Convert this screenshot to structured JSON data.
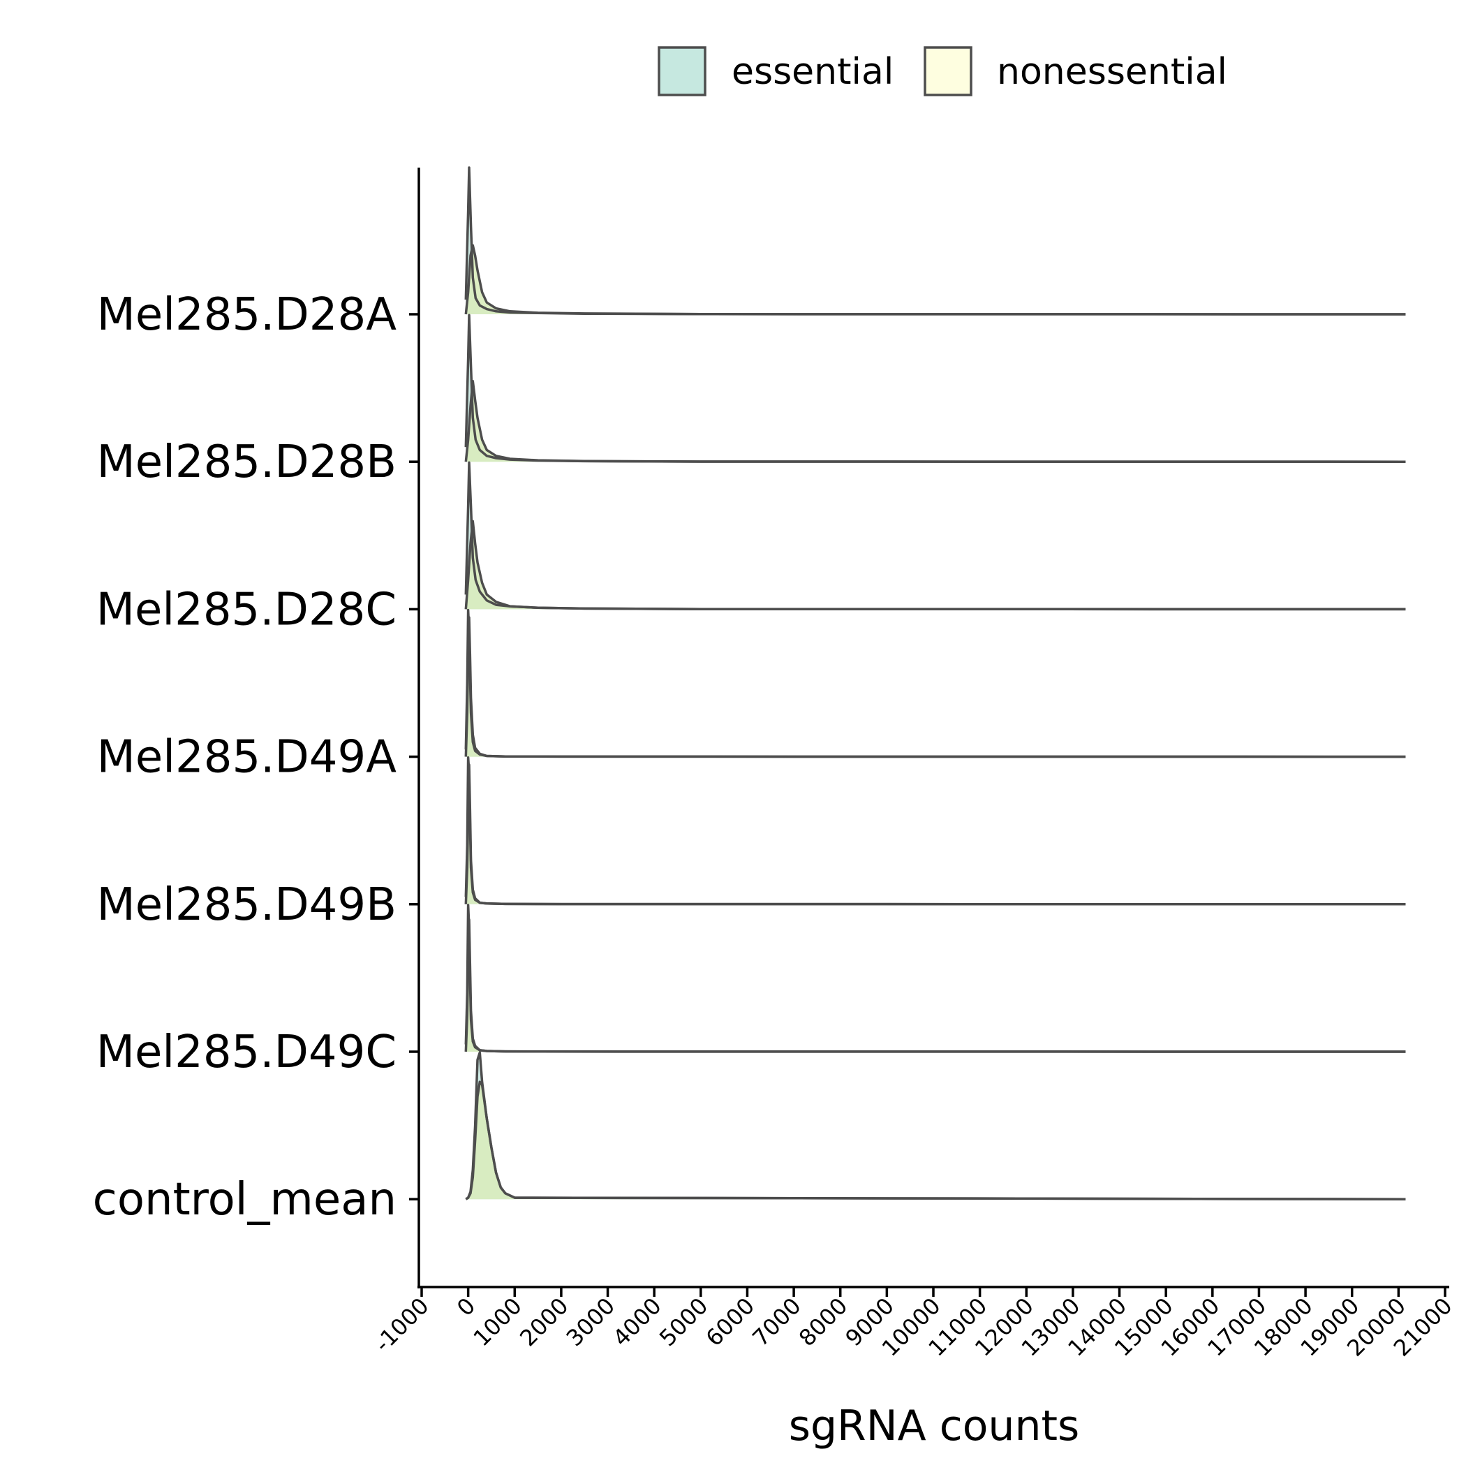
{
  "chart_data": {
    "type": "area",
    "subtype": "ridgeline-density",
    "xlabel": "sgRNA counts",
    "ylabel": "",
    "xlim": [
      -1000,
      21000
    ],
    "x_ticks": [
      -1000,
      0,
      1000,
      2000,
      3000,
      4000,
      5000,
      6000,
      7000,
      8000,
      9000,
      10000,
      11000,
      12000,
      13000,
      14000,
      15000,
      16000,
      17000,
      18000,
      19000,
      20000,
      21000
    ],
    "x_tick_labels": [
      "-1000",
      "0",
      "1000",
      "2000",
      "3000",
      "4000",
      "5000",
      "6000",
      "7000",
      "8000",
      "9000",
      "10000",
      "11000",
      "12000",
      "13000",
      "14000",
      "15000",
      "16000",
      "17000",
      "18000",
      "19000",
      "20000",
      "21000"
    ],
    "categories": [
      "Mel285.D28A",
      "Mel285.D28B",
      "Mel285.D28C",
      "Mel285.D49A",
      "Mel285.D49B",
      "Mel285.D49C",
      "control_mean"
    ],
    "legend": {
      "placement": "top",
      "entries": [
        {
          "name": "essential",
          "color": "#c6e8e0"
        },
        {
          "name": "nonessential",
          "color": "#fefee0"
        }
      ]
    },
    "overlap_color": "#d9ecbd",
    "outline_color": "#4d4d4d",
    "grid": false,
    "series": [
      {
        "name": "Mel285.D28A",
        "x_range": [
          -50,
          20150
        ],
        "essential": {
          "x": [
            -50,
            0,
            20,
            60,
            100,
            160,
            250,
            400,
            600,
            900,
            1500,
            2500,
            5000,
            20150
          ],
          "density": [
            0.1,
            0.7,
            1.0,
            0.6,
            0.25,
            0.11,
            0.06,
            0.035,
            0.02,
            0.012,
            0.008,
            0.004,
            0.001,
            0
          ]
        },
        "nonessential": {
          "x": [
            -50,
            0,
            50,
            100,
            150,
            200,
            300,
            400,
            600,
            900,
            1500,
            2500,
            5000,
            20150
          ],
          "density": [
            0.0,
            0.15,
            0.4,
            0.47,
            0.4,
            0.3,
            0.15,
            0.08,
            0.04,
            0.02,
            0.01,
            0.005,
            0.001,
            0
          ]
        }
      },
      {
        "name": "Mel285.D28B",
        "x_range": [
          -50,
          20150
        ],
        "essential": {
          "x": [
            -50,
            0,
            20,
            60,
            100,
            160,
            250,
            400,
            600,
            900,
            1500,
            2500,
            5000,
            20150
          ],
          "density": [
            0.1,
            0.7,
            1.0,
            0.65,
            0.3,
            0.15,
            0.08,
            0.04,
            0.025,
            0.015,
            0.008,
            0.004,
            0.001,
            0
          ]
        },
        "nonessential": {
          "x": [
            -50,
            0,
            50,
            100,
            150,
            200,
            300,
            400,
            600,
            900,
            1500,
            2500,
            5000,
            20150
          ],
          "density": [
            0.0,
            0.15,
            0.38,
            0.55,
            0.42,
            0.3,
            0.15,
            0.08,
            0.04,
            0.02,
            0.01,
            0.005,
            0.001,
            0
          ]
        }
      },
      {
        "name": "Mel285.D28C",
        "x_range": [
          -50,
          20150
        ],
        "essential": {
          "x": [
            -50,
            0,
            20,
            60,
            100,
            160,
            250,
            400,
            600,
            900,
            1500,
            2500,
            5000,
            20150
          ],
          "density": [
            0.1,
            0.7,
            1.0,
            0.7,
            0.35,
            0.2,
            0.12,
            0.06,
            0.03,
            0.02,
            0.01,
            0.005,
            0.001,
            0
          ]
        },
        "nonessential": {
          "x": [
            -50,
            0,
            50,
            100,
            150,
            200,
            300,
            400,
            600,
            900,
            1500,
            2500,
            5000,
            20150
          ],
          "density": [
            0.0,
            0.2,
            0.45,
            0.6,
            0.45,
            0.32,
            0.18,
            0.1,
            0.05,
            0.02,
            0.01,
            0.005,
            0.001,
            0
          ]
        }
      },
      {
        "name": "Mel285.D49A",
        "x_range": [
          -50,
          20150
        ],
        "essential": {
          "x": [
            -50,
            -20,
            0,
            20,
            40,
            60,
            100,
            150,
            250,
            400,
            800,
            2000,
            20150
          ],
          "density": [
            0.05,
            0.5,
            1.0,
            0.85,
            0.55,
            0.3,
            0.1,
            0.04,
            0.015,
            0.005,
            0.002,
            0.001,
            0
          ]
        },
        "nonessential": {
          "x": [
            -50,
            -20,
            0,
            20,
            40,
            60,
            100,
            150,
            250,
            400,
            800,
            2000,
            20150
          ],
          "density": [
            0.0,
            0.3,
            0.7,
            0.95,
            0.7,
            0.4,
            0.15,
            0.06,
            0.02,
            0.005,
            0.002,
            0.001,
            0
          ]
        }
      },
      {
        "name": "Mel285.D49B",
        "x_range": [
          -50,
          20150
        ],
        "essential": {
          "x": [
            -50,
            -20,
            0,
            20,
            40,
            60,
            100,
            150,
            250,
            400,
            800,
            2000,
            20150
          ],
          "density": [
            0.05,
            0.4,
            1.0,
            0.9,
            0.55,
            0.25,
            0.08,
            0.03,
            0.01,
            0.005,
            0.002,
            0.001,
            0
          ]
        },
        "nonessential": {
          "x": [
            -50,
            -20,
            0,
            20,
            40,
            60,
            100,
            150,
            250,
            400,
            800,
            2000,
            20150
          ],
          "density": [
            0.0,
            0.25,
            0.6,
            0.95,
            0.65,
            0.3,
            0.1,
            0.04,
            0.01,
            0.005,
            0.002,
            0.001,
            0
          ]
        }
      },
      {
        "name": "Mel285.D49C",
        "x_range": [
          -50,
          20150
        ],
        "essential": {
          "x": [
            -50,
            -20,
            0,
            20,
            40,
            60,
            100,
            150,
            250,
            400,
            800,
            1500,
            20150
          ],
          "density": [
            0.05,
            0.4,
            1.0,
            0.85,
            0.5,
            0.22,
            0.07,
            0.03,
            0.01,
            0.005,
            0.002,
            0.001,
            0
          ]
        },
        "nonessential": {
          "x": [
            -50,
            -20,
            0,
            20,
            40,
            60,
            100,
            150,
            250,
            400,
            800,
            1500,
            20150
          ],
          "density": [
            0.0,
            0.25,
            0.6,
            0.9,
            0.6,
            0.28,
            0.09,
            0.04,
            0.01,
            0.005,
            0.002,
            0.001,
            0
          ]
        }
      },
      {
        "name": "control_mean",
        "x_range": [
          -50,
          20150
        ],
        "essential": {
          "x": [
            -50,
            0,
            50,
            100,
            150,
            200,
            250,
            300,
            400,
            500,
            600,
            700,
            800,
            1000,
            20150
          ],
          "density": [
            0.0,
            0.01,
            0.05,
            0.2,
            0.5,
            0.95,
            1.0,
            0.8,
            0.55,
            0.35,
            0.18,
            0.08,
            0.04,
            0.01,
            0
          ]
        },
        "nonessential": {
          "x": [
            -50,
            0,
            50,
            100,
            150,
            200,
            250,
            300,
            400,
            500,
            600,
            700,
            800,
            1000,
            20150
          ],
          "density": [
            0.0,
            0.01,
            0.04,
            0.15,
            0.4,
            0.7,
            0.8,
            0.78,
            0.55,
            0.35,
            0.18,
            0.08,
            0.04,
            0.01,
            0
          ]
        }
      }
    ]
  }
}
